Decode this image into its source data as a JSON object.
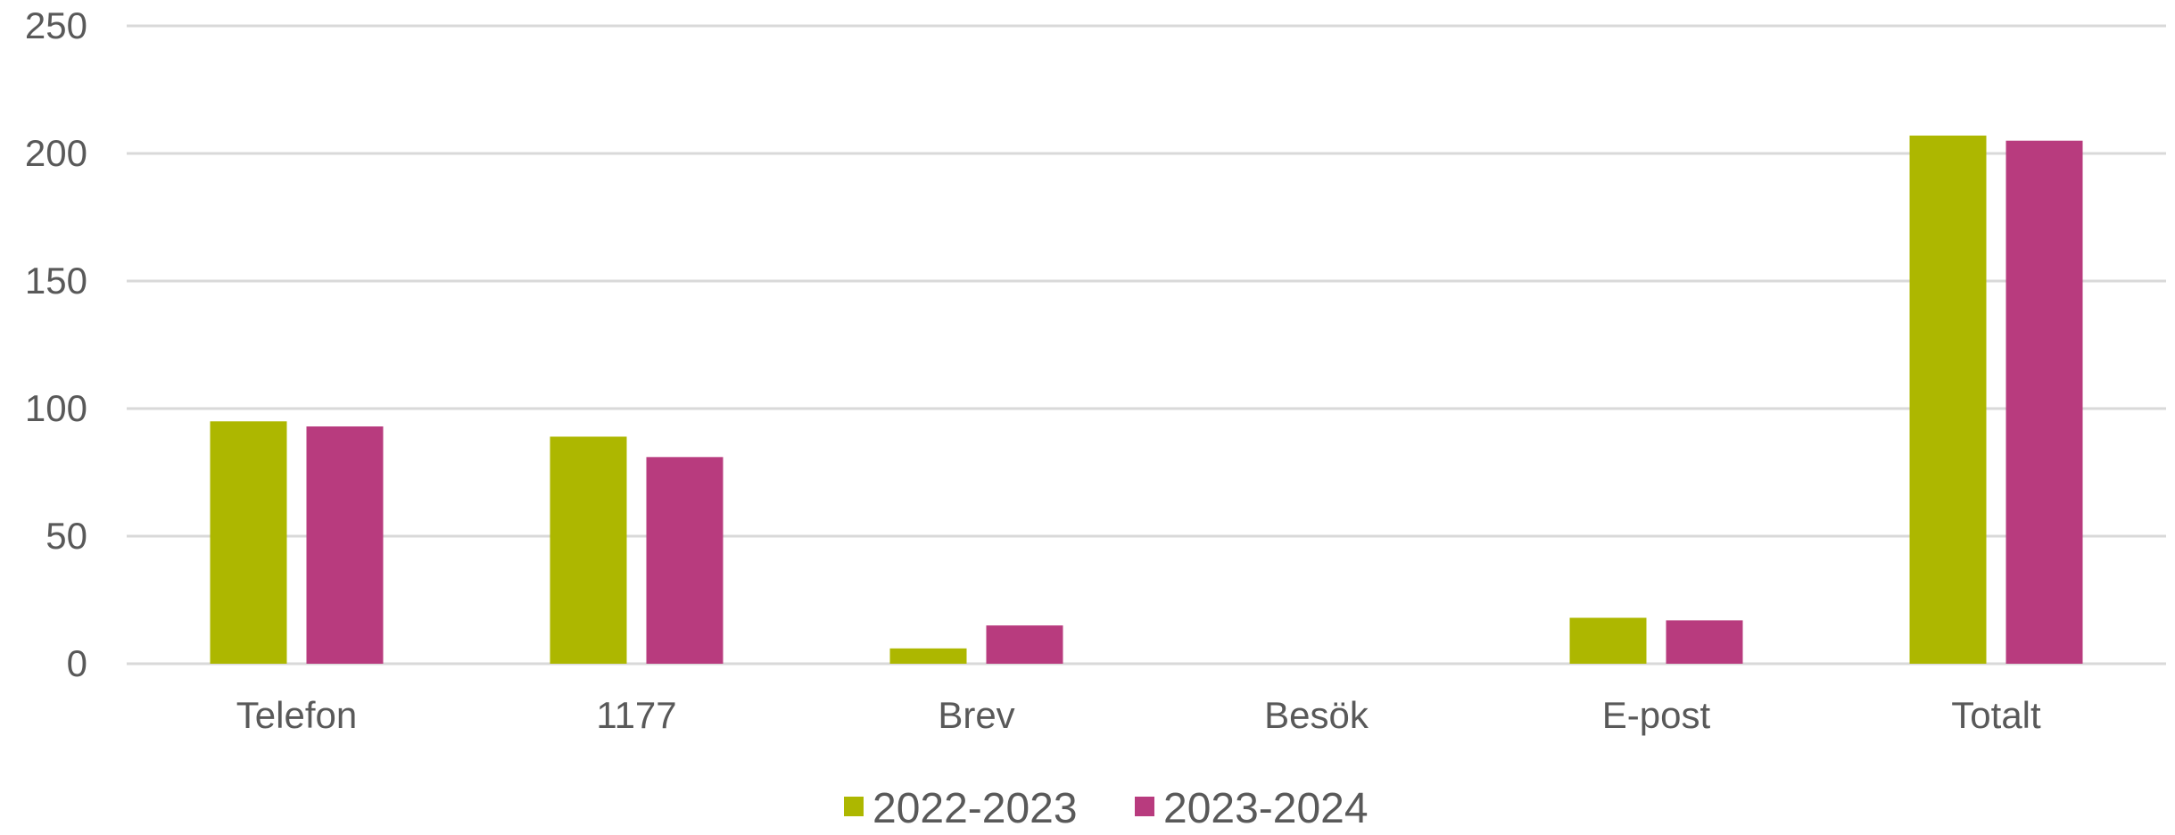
{
  "chart_data": {
    "type": "bar",
    "categories": [
      "Telefon",
      "1177",
      "Brev",
      "Besök",
      "E-post",
      "Totalt"
    ],
    "series": [
      {
        "name": "2022-2023",
        "color": "#adb700",
        "values": [
          95,
          89,
          6,
          0,
          18,
          207
        ]
      },
      {
        "name": "2023-2024",
        "color": "#b83b7e",
        "values": [
          93,
          81,
          15,
          0,
          17,
          205
        ]
      }
    ],
    "y_ticks": [
      "0",
      "50",
      "100",
      "150",
      "200",
      "250"
    ],
    "ylim": [
      0,
      250
    ],
    "grid": true,
    "grid_color": "#d9d9d9",
    "legend_position": "bottom"
  }
}
